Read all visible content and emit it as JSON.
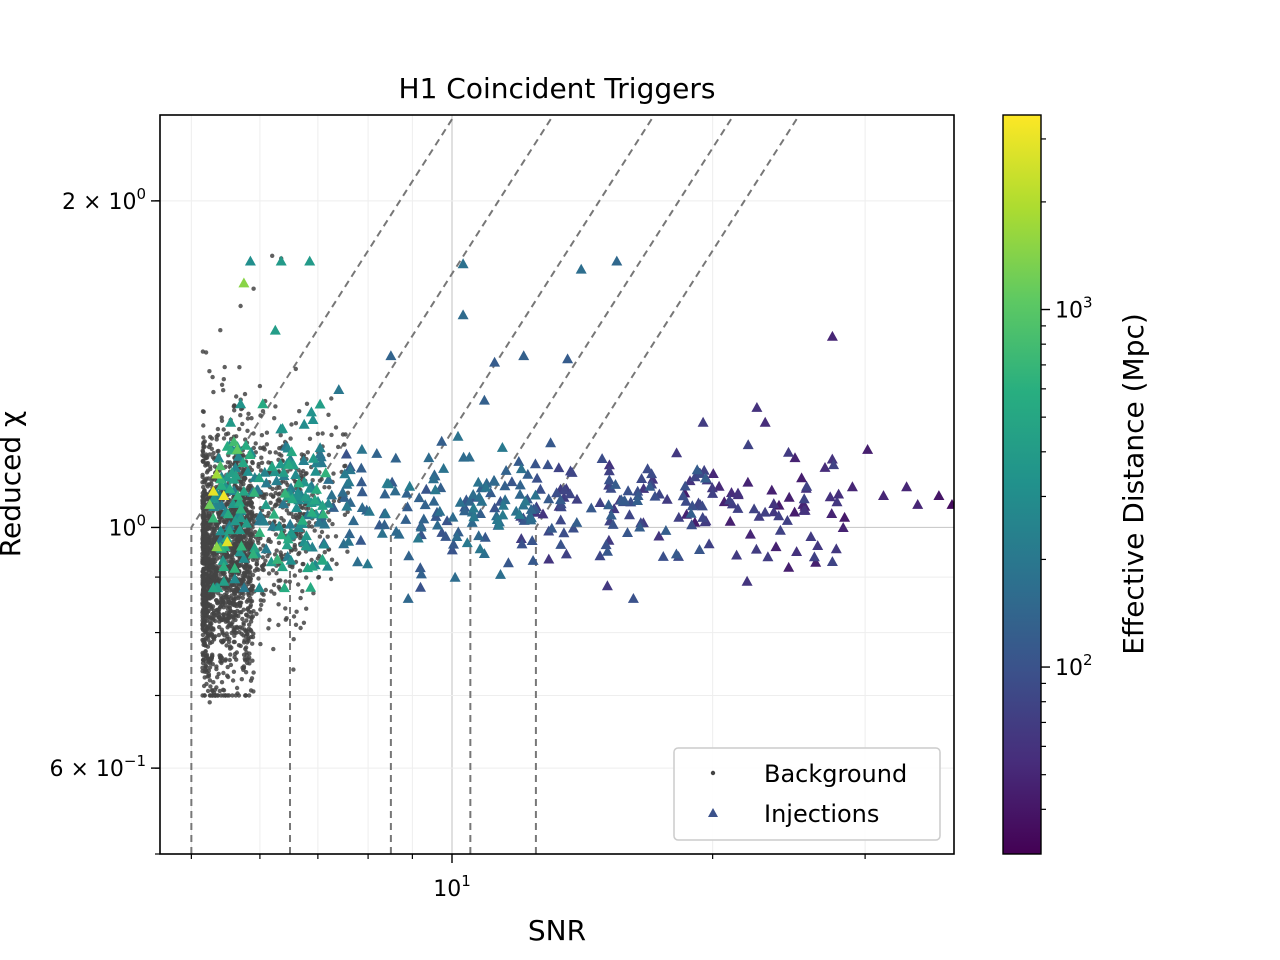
{
  "chart_data": {
    "type": "scatter",
    "title": "H1 Coincident Triggers",
    "xlabel": "SNR",
    "ylabel": "Reduced χ",
    "xscale": "log",
    "yscale": "log",
    "xlim": [
      4.6,
      38
    ],
    "ylim": [
      0.5,
      2.4
    ],
    "grid": true,
    "legend": {
      "placement": "lower-right",
      "entries": [
        "Background",
        "Injections"
      ]
    },
    "x_tick_labels": [
      {
        "value": 10,
        "base": "10",
        "exp": "1"
      }
    ],
    "y_tick_labels": [
      {
        "value": 2,
        "mant": "2 × ",
        "base": "10",
        "exp": "0"
      },
      {
        "value": 1,
        "mant": "",
        "base": "10",
        "exp": "0"
      },
      {
        "value": 0.6,
        "mant": "6 × ",
        "base": "10",
        "exp": "−1"
      }
    ],
    "colorbar": {
      "label": "Effective Distance (Mpc)",
      "scale": "log",
      "range": [
        30,
        3500
      ],
      "colormap": "viridis",
      "tick_labels": [
        {
          "value": 100,
          "base": "10",
          "exp": "2"
        },
        {
          "value": 1000,
          "base": "10",
          "exp": "3"
        }
      ]
    },
    "threshold_curves": [
      {
        "snr_start": 5.0,
        "chi_start": 1.0
      },
      {
        "snr_start": 6.5,
        "chi_start": 1.0
      },
      {
        "snr_start": 8.5,
        "chi_start": 1.0
      },
      {
        "snr_start": 10.5,
        "chi_start": 1.0
      },
      {
        "snr_start": 12.5,
        "chi_start": 1.0
      }
    ],
    "threshold_slope": 1.25,
    "series": [
      {
        "name": "Background",
        "marker": "dot",
        "color": "#444444",
        "clusters": [
          {
            "n": 1500,
            "snr_min": 5.15,
            "snr_max": 5.9,
            "chi_center": 0.93,
            "chi_sigma": 0.13
          },
          {
            "n": 550,
            "snr_min": 5.6,
            "snr_max": 6.8,
            "chi_center": 1.02,
            "chi_sigma": 0.1
          },
          {
            "n": 120,
            "snr_min": 6.6,
            "snr_max": 7.6,
            "chi_center": 1.06,
            "chi_sigma": 0.09
          }
        ],
        "points": [
          [
            5.2,
            1.45
          ],
          [
            5.4,
            1.52
          ],
          [
            5.7,
            1.6
          ],
          [
            5.9,
            1.66
          ],
          [
            6.2,
            1.78
          ],
          [
            6.35,
            1.77
          ],
          [
            5.5,
            0.73
          ],
          [
            5.3,
            0.72
          ],
          [
            5.8,
            0.75
          ],
          [
            6.0,
            1.35
          ],
          [
            6.8,
            1.3
          ],
          [
            7.0,
            1.22
          ],
          [
            7.2,
            1.27
          ],
          [
            6.6,
            1.4
          ],
          [
            5.25,
            0.69
          ]
        ]
      },
      {
        "name": "Injections",
        "marker": "triangle",
        "points": [
          [
            5.75,
            1.68,
            1500
          ],
          [
            5.85,
            1.76,
            320
          ],
          [
            6.35,
            1.76,
            400
          ],
          [
            6.85,
            1.76,
            400
          ],
          [
            6.25,
            1.52,
            420
          ],
          [
            10.3,
            1.75,
            180
          ],
          [
            10.3,
            1.57,
            160
          ],
          [
            14.1,
            1.73,
            170
          ],
          [
            15.5,
            1.76,
            150
          ],
          [
            27.5,
            1.5,
            50
          ],
          [
            8.5,
            1.44,
            140
          ],
          [
            11.2,
            1.42,
            120
          ],
          [
            12.1,
            1.44,
            130
          ],
          [
            13.6,
            1.43,
            120
          ],
          [
            7.4,
            1.34,
            200
          ],
          [
            10.9,
            1.31,
            130
          ],
          [
            22.5,
            1.29,
            60
          ],
          [
            23.0,
            1.25,
            55
          ],
          [
            19.5,
            1.25,
            70
          ],
          [
            30.2,
            1.18,
            45
          ],
          [
            33.5,
            1.09,
            50
          ],
          [
            36.5,
            1.07,
            40
          ],
          [
            37.8,
            1.05,
            35
          ],
          [
            34.5,
            1.05,
            50
          ],
          [
            29.0,
            1.09,
            50
          ],
          [
            31.5,
            1.07,
            50
          ],
          [
            16.2,
            0.86,
            100
          ],
          [
            8.9,
            0.86,
            150
          ],
          [
            27.5,
            0.93,
            80
          ],
          [
            25.0,
            0.95,
            60
          ],
          [
            5.3,
            1.08,
            3000
          ],
          [
            5.45,
            1.07,
            3200
          ],
          [
            5.5,
            0.97,
            2800
          ],
          [
            5.35,
            1.12,
            1800
          ],
          [
            5.25,
            1.05,
            1200
          ],
          [
            5.4,
            1.14,
            900
          ],
          [
            5.65,
            1.18,
            1100
          ],
          [
            5.3,
            1.02,
            700
          ],
          [
            5.45,
            0.92,
            600
          ],
          [
            5.3,
            0.88,
            500
          ],
          [
            5.55,
            1.25,
            400
          ],
          [
            5.7,
            1.3,
            350
          ],
          [
            5.6,
            1.2,
            800
          ],
          [
            5.35,
            0.96,
            1500
          ],
          [
            5.75,
            1.08,
            500
          ]
        ],
        "clusters": [
          {
            "n": 170,
            "snr_min": 5.3,
            "snr_max": 7.2,
            "chi_center": 1.05,
            "chi_sigma": 0.085,
            "dist_min": 200,
            "dist_max": 700
          },
          {
            "n": 150,
            "snr_min": 7.0,
            "snr_max": 12.5,
            "chi_center": 1.04,
            "chi_sigma": 0.065,
            "dist_min": 100,
            "dist_max": 220
          },
          {
            "n": 110,
            "snr_min": 12.0,
            "snr_max": 20.0,
            "chi_center": 1.05,
            "chi_sigma": 0.055,
            "dist_min": 60,
            "dist_max": 130
          },
          {
            "n": 60,
            "snr_min": 18.5,
            "snr_max": 29.0,
            "chi_center": 1.05,
            "chi_sigma": 0.06,
            "dist_min": 40,
            "dist_max": 80
          }
        ]
      }
    ]
  }
}
